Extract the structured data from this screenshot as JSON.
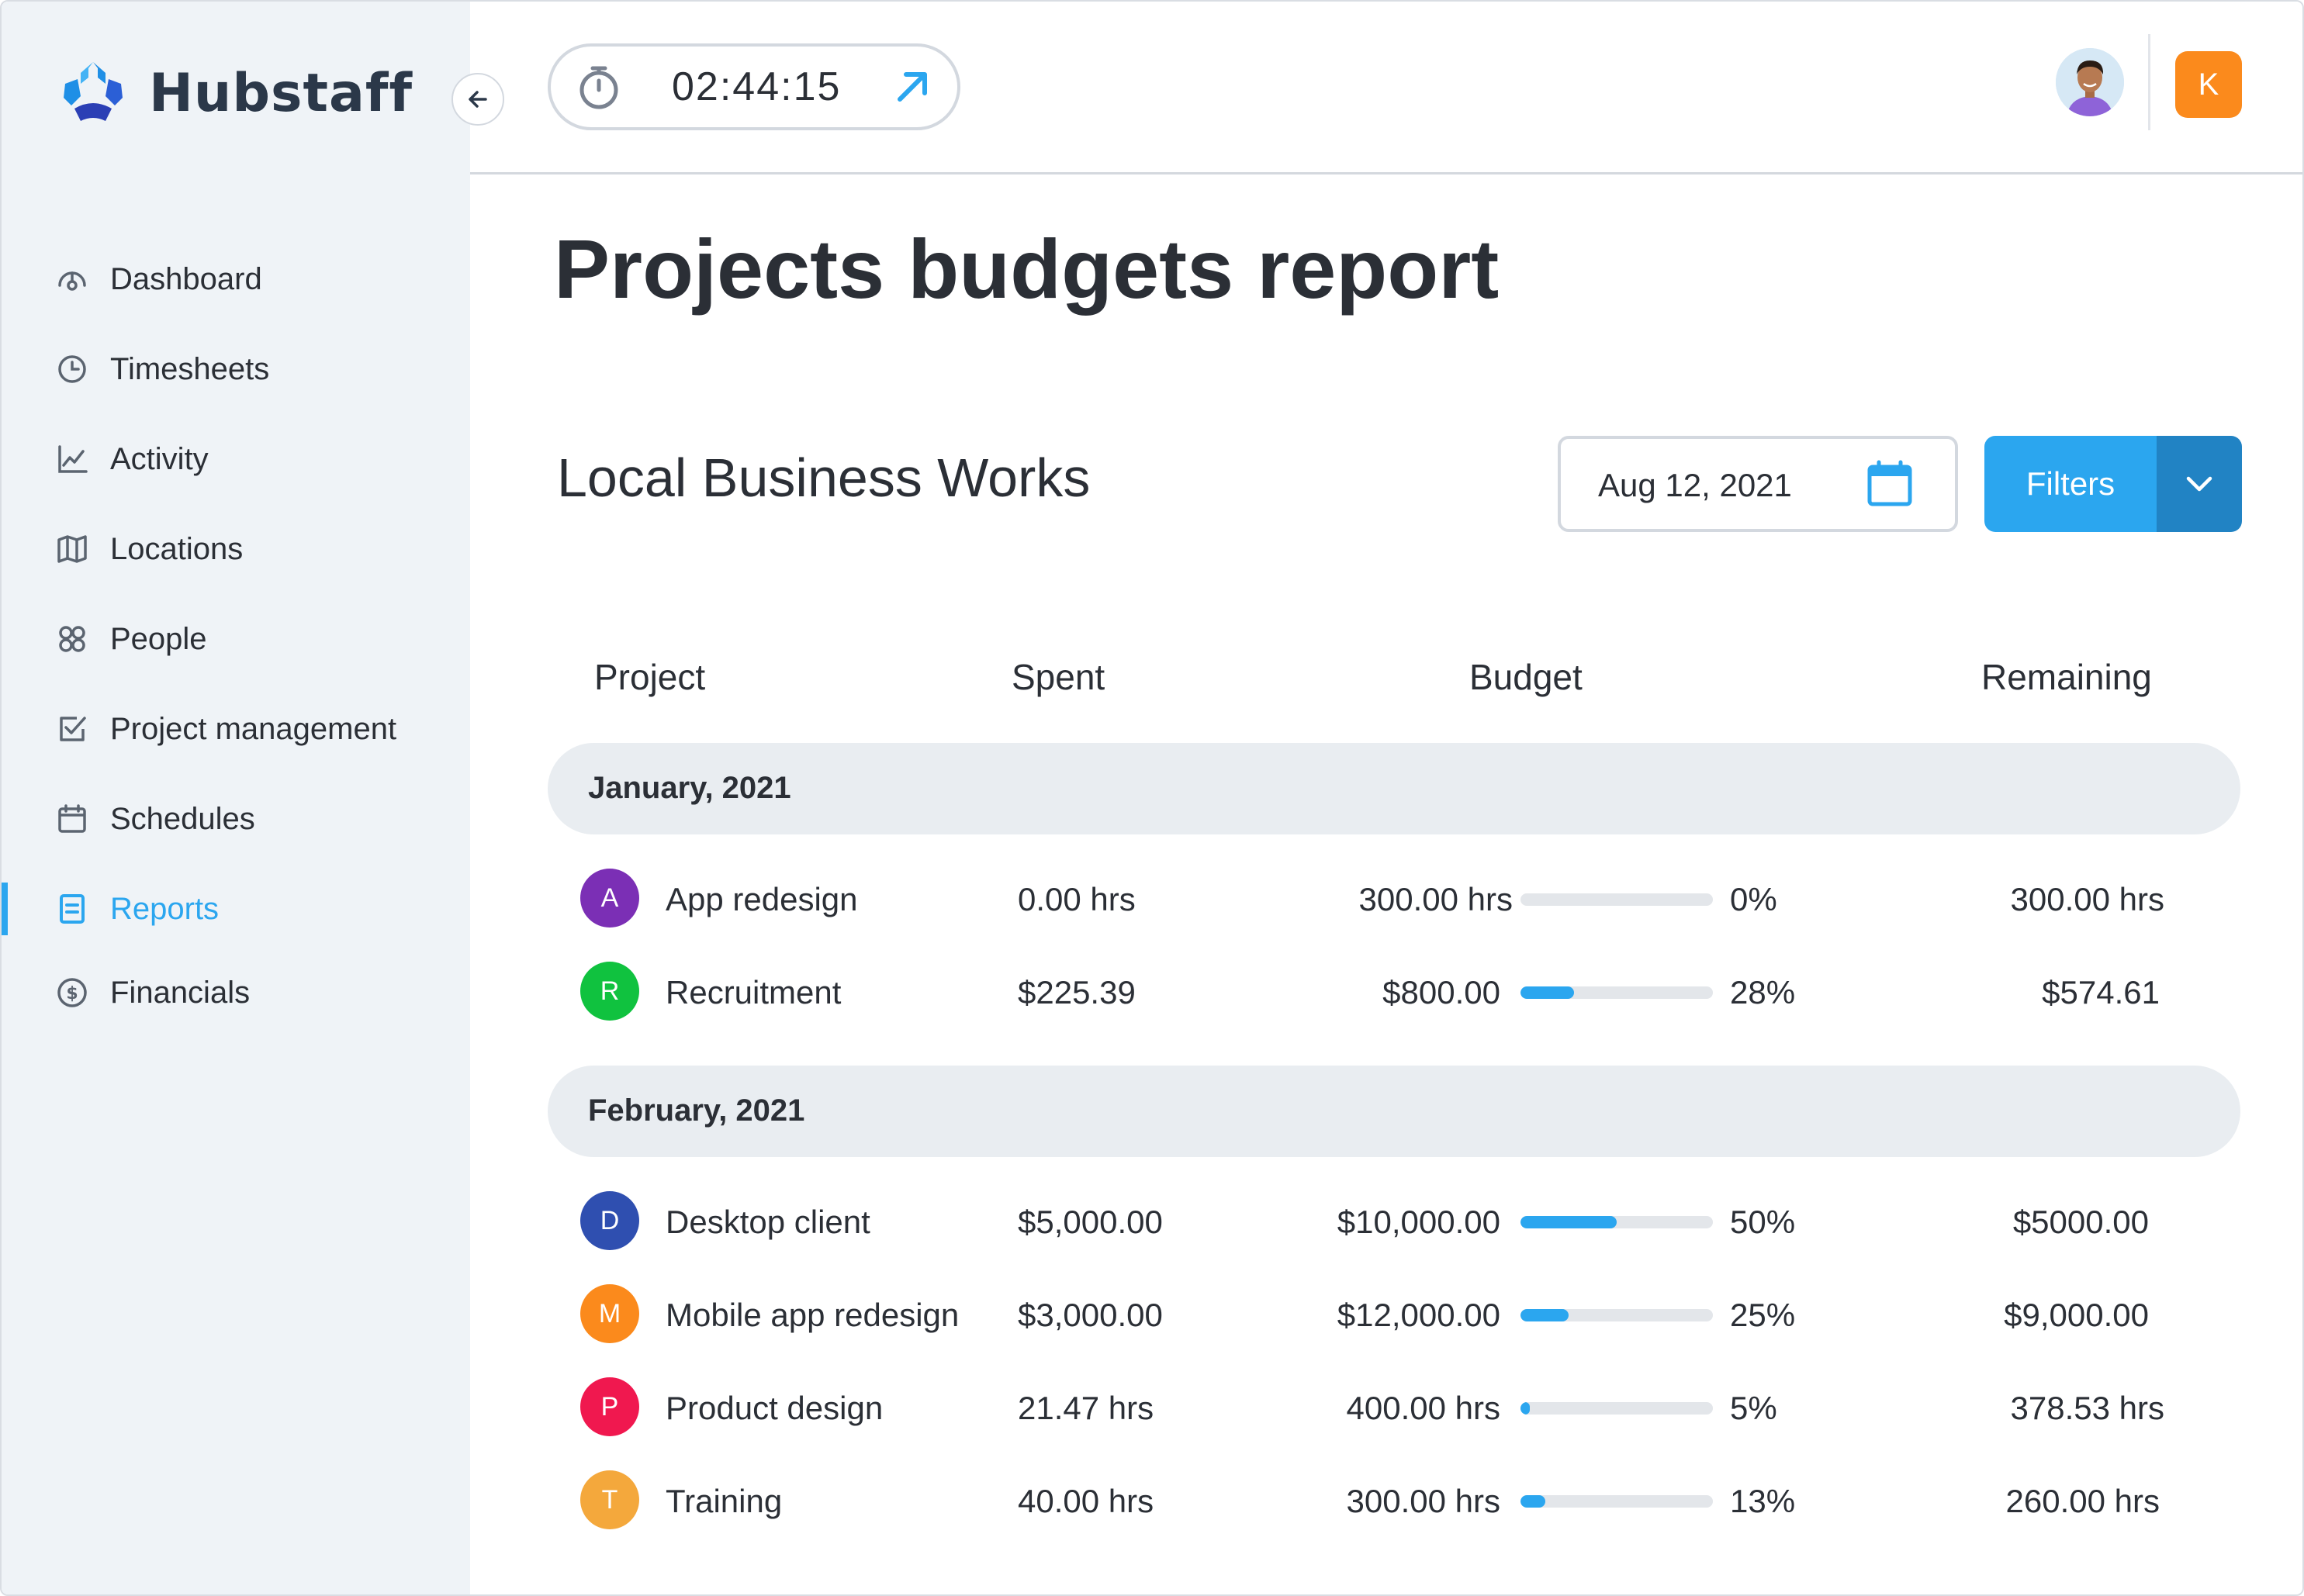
{
  "app": {
    "brand": "Hubstaff"
  },
  "sidebar": {
    "items": [
      {
        "label": "Dashboard",
        "icon": "dashboard-icon",
        "active": false
      },
      {
        "label": "Timesheets",
        "icon": "clock-icon",
        "active": false
      },
      {
        "label": "Activity",
        "icon": "activity-chart-icon",
        "active": false
      },
      {
        "label": "Locations",
        "icon": "map-icon",
        "active": false
      },
      {
        "label": "People",
        "icon": "people-icon",
        "active": false
      },
      {
        "label": "Project management",
        "icon": "checkbox-icon",
        "active": false
      },
      {
        "label": "Schedules",
        "icon": "calendar-icon",
        "active": false
      },
      {
        "label": "Reports",
        "icon": "report-icon",
        "active": true
      },
      {
        "label": "Financials",
        "icon": "dollar-icon",
        "active": false
      }
    ]
  },
  "header": {
    "timer": "02:44:15",
    "user_initial": "K"
  },
  "main": {
    "title": "Projects budgets report",
    "organization": "Local Business Works",
    "date": "Aug 12, 2021",
    "filters_label": "Filters",
    "columns": {
      "project": "Project",
      "spent": "Spent",
      "budget": "Budget",
      "remaining": "Remaining"
    },
    "groups": [
      {
        "label": "January, 2021",
        "rows": [
          {
            "initial": "A",
            "color": "#7b2fb5",
            "name": "App redesign",
            "spent": "0.00 hrs",
            "budget": "300.00 hrs",
            "percent_label": "0%",
            "percent": 0,
            "remaining": "300.00 hrs"
          },
          {
            "initial": "R",
            "color": "#10c23f",
            "name": "Recruitment",
            "spent": "$225.39",
            "budget": "$800.00",
            "percent_label": "28%",
            "percent": 28,
            "remaining": "$574.61"
          }
        ]
      },
      {
        "label": "February, 2021",
        "rows": [
          {
            "initial": "D",
            "color": "#2f4fb0",
            "name": "Desktop client",
            "spent": "$5,000.00",
            "budget": "$10,000.00",
            "percent_label": "50%",
            "percent": 50,
            "remaining": "$5000.00"
          },
          {
            "initial": "M",
            "color": "#fb8a1c",
            "name": "Mobile app redesign",
            "spent": "$3,000.00",
            "budget": "$12,000.00",
            "percent_label": "25%",
            "percent": 25,
            "remaining": "$9,000.00"
          },
          {
            "initial": "P",
            "color": "#f0184f",
            "name": "Product design",
            "spent": "21.47 hrs",
            "budget": "400.00 hrs",
            "percent_label": "5%",
            "percent": 5,
            "remaining": "378.53 hrs"
          },
          {
            "initial": "T",
            "color": "#f4a83c",
            "name": "Training",
            "spent": "40.00 hrs",
            "budget": "300.00 hrs",
            "percent_label": "13%",
            "percent": 13,
            "remaining": "260.00 hrs"
          }
        ]
      }
    ]
  },
  "colors": {
    "accent": "#2ba6ef",
    "accent_dark": "#2183c4",
    "sidebar_bg": "#eff3f7",
    "group_bg": "#e9edf1"
  }
}
